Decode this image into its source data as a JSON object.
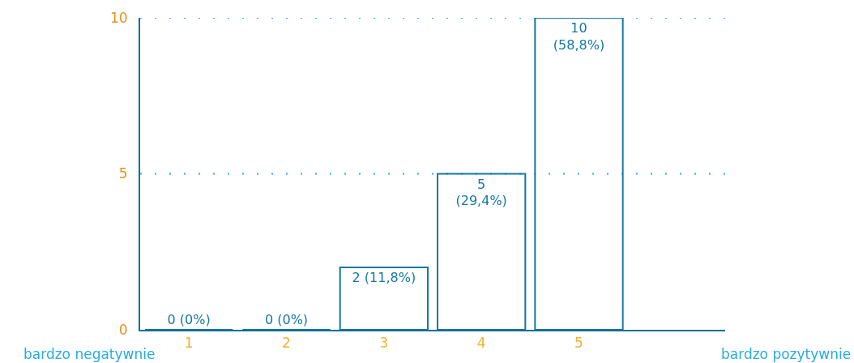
{
  "chart_data": {
    "type": "bar",
    "categories": [
      "1",
      "2",
      "3",
      "4",
      "5"
    ],
    "values": [
      0,
      0,
      2,
      5,
      10
    ],
    "value_labels": [
      "0 (0%)",
      "0 (0%)",
      "2 (11,8%)",
      "5\n(29,4%)",
      "10\n(58,8%)"
    ],
    "color": "#1479a0",
    "ylim": [
      0,
      10
    ],
    "yticks": [
      0,
      5,
      10
    ],
    "ref_lines": [
      {
        "axis": "y",
        "value": 5,
        "color": "#29abe2",
        "line_style": "dotted"
      },
      {
        "axis": "y",
        "value": 10,
        "color": "#29abe2",
        "line_style": "dotted"
      }
    ],
    "annotations": [
      "bardzo negatywnie",
      "bardzo pozytywnie"
    ]
  }
}
